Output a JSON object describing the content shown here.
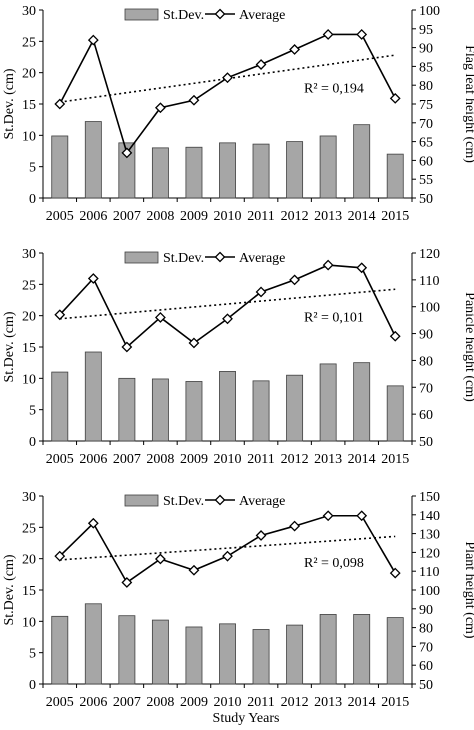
{
  "figure": {
    "x_axis_label": "Study Years",
    "legend": {
      "bar_label": "St.Dev.",
      "line_label": "Average"
    }
  },
  "colors": {
    "bar_fill": "#a6a6a6",
    "bar_stroke": "#404040",
    "line": "#000000",
    "marker_fill": "#ffffff",
    "trendline": "#000000"
  },
  "chart_data": [
    {
      "type": "bar+line",
      "categories": [
        "2005",
        "2006",
        "2007",
        "2008",
        "2009",
        "2010",
        "2011",
        "2012",
        "2013",
        "2014",
        "2015"
      ],
      "ylabel_left": "St.Dev. (cm)",
      "ylabel_right": "Flag leaf height (cm)",
      "ylim_left": [
        0,
        30
      ],
      "yticks_left": [
        0,
        5,
        10,
        15,
        20,
        25,
        30
      ],
      "ylim_right": [
        50,
        100
      ],
      "yticks_right": [
        50,
        55,
        60,
        65,
        70,
        75,
        80,
        85,
        90,
        95,
        100
      ],
      "series": [
        {
          "name": "St.Dev.",
          "kind": "bar",
          "axis": "left",
          "values": [
            9.9,
            12.2,
            8.8,
            8.0,
            8.1,
            8.8,
            8.6,
            9.0,
            9.9,
            11.7,
            7.0
          ]
        },
        {
          "name": "Average",
          "kind": "line",
          "axis": "right",
          "marker": "diamond",
          "values": [
            75.0,
            92.0,
            62.0,
            74.0,
            76.0,
            82.0,
            85.5,
            89.5,
            93.5,
            93.5,
            76.5
          ]
        }
      ],
      "trendline": {
        "axis": "right",
        "style": "dotted",
        "start": 75.5,
        "end": 88.0,
        "r2_text": "R² = 0,194"
      }
    },
    {
      "type": "bar+line",
      "categories": [
        "2005",
        "2006",
        "2007",
        "2008",
        "2009",
        "2010",
        "2011",
        "2012",
        "2013",
        "2014",
        "2015"
      ],
      "ylabel_left": "St.Dev. (cm)",
      "ylabel_right": "Panicle height (cm)",
      "ylim_left": [
        0,
        30
      ],
      "yticks_left": [
        0,
        5,
        10,
        15,
        20,
        25,
        30
      ],
      "ylim_right": [
        50,
        120
      ],
      "yticks_right": [
        50,
        60,
        70,
        80,
        90,
        100,
        110,
        120
      ],
      "series": [
        {
          "name": "St.Dev.",
          "kind": "bar",
          "axis": "left",
          "values": [
            11.0,
            14.2,
            10.0,
            9.9,
            9.5,
            11.1,
            9.6,
            10.5,
            12.3,
            12.5,
            8.8
          ]
        },
        {
          "name": "Average",
          "kind": "line",
          "axis": "right",
          "marker": "diamond",
          "values": [
            97.0,
            110.5,
            85.0,
            96.0,
            86.5,
            95.5,
            105.5,
            110.0,
            115.5,
            114.5,
            89.0
          ]
        }
      ],
      "trendline": {
        "axis": "right",
        "style": "dotted",
        "start": 95.5,
        "end": 106.5,
        "r2_text": "R² = 0,101"
      }
    },
    {
      "type": "bar+line",
      "categories": [
        "2005",
        "2006",
        "2007",
        "2008",
        "2009",
        "2010",
        "2011",
        "2012",
        "2013",
        "2014",
        "2015"
      ],
      "ylabel_left": "St.Dev. (cm)",
      "ylabel_right": "Plant height (cm)",
      "ylim_left": [
        0,
        30
      ],
      "yticks_left": [
        0,
        5,
        10,
        15,
        20,
        25,
        30
      ],
      "ylim_right": [
        50,
        150
      ],
      "yticks_right": [
        50,
        60,
        70,
        80,
        90,
        100,
        110,
        120,
        130,
        140,
        150
      ],
      "series": [
        {
          "name": "St.Dev.",
          "kind": "bar",
          "axis": "left",
          "values": [
            10.8,
            12.8,
            10.9,
            10.2,
            9.1,
            9.6,
            8.7,
            9.4,
            11.1,
            11.1,
            10.6
          ]
        },
        {
          "name": "Average",
          "kind": "line",
          "axis": "right",
          "marker": "diamond",
          "values": [
            118.0,
            135.5,
            104.0,
            116.5,
            110.5,
            118.0,
            129.0,
            134.0,
            139.5,
            139.5,
            109.0
          ]
        }
      ],
      "trendline": {
        "axis": "right",
        "style": "dotted",
        "start": 116.0,
        "end": 128.5,
        "r2_text": "R² = 0,098"
      }
    }
  ]
}
